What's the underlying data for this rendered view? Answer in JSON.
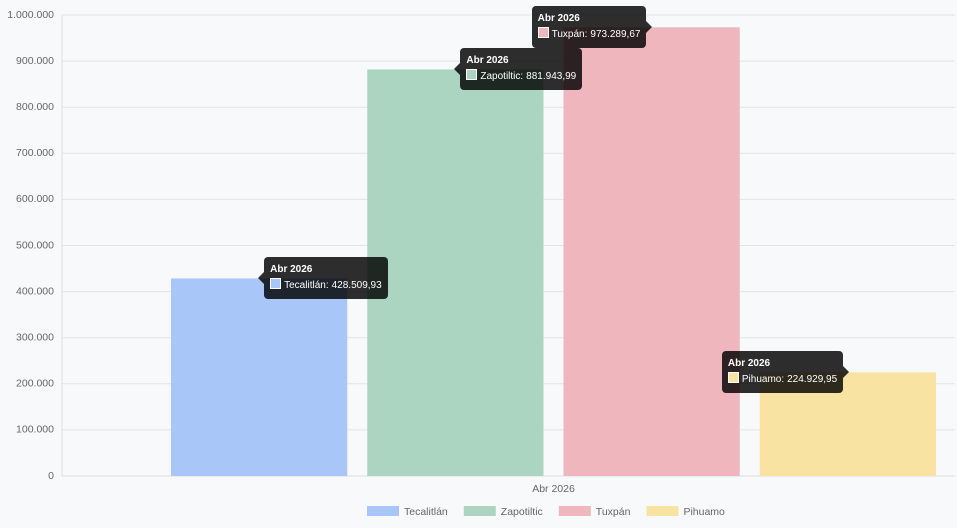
{
  "chart_data": {
    "type": "bar",
    "categories": [
      "Abr 2026"
    ],
    "series": [
      {
        "name": "Tecalitlán",
        "color": "#a8c6f7",
        "values": [
          428509.93
        ],
        "value_labels": [
          "428.509,93"
        ]
      },
      {
        "name": "Zapotiltic",
        "color": "#acd5c1",
        "values": [
          881943.99
        ],
        "value_labels": [
          "881.943,99"
        ]
      },
      {
        "name": "Tuxpán",
        "color": "#efb7bd",
        "values": [
          973289.67
        ],
        "value_labels": [
          "973.289,67"
        ]
      },
      {
        "name": "Pihuamo",
        "color": "#f8e3a3",
        "values": [
          224929.95
        ],
        "value_labels": [
          "224.929,95"
        ]
      }
    ],
    "ylim": [
      0,
      1000000
    ],
    "yticks": [
      0,
      {
        "value": 100000,
        "label": "100.000"
      },
      {
        "value": 200000,
        "label": "200.000"
      },
      {
        "value": 300000,
        "label": "300.000"
      },
      {
        "value": 400000,
        "label": "400.000"
      },
      {
        "value": 500000,
        "label": "500.000"
      },
      {
        "value": 600000,
        "label": "600.000"
      },
      {
        "value": 700000,
        "label": "700.000"
      },
      {
        "value": 800000,
        "label": "800.000"
      },
      {
        "value": 900000,
        "label": "900.000"
      },
      {
        "value": 1000000,
        "label": "1.000.000"
      }
    ],
    "grid": true,
    "legend": "bottom"
  }
}
